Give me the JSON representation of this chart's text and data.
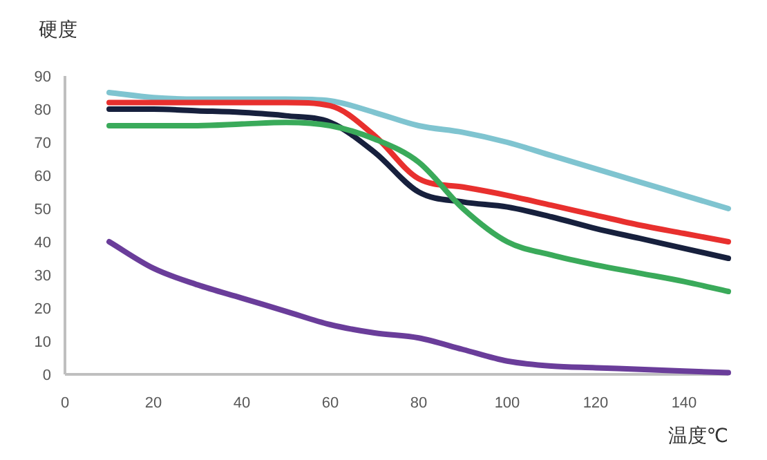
{
  "chart_data": {
    "type": "line",
    "xlabel": "温度℃",
    "ylabel": "硬度",
    "x": [
      10,
      20,
      30,
      40,
      50,
      60,
      70,
      80,
      90,
      100,
      110,
      120,
      130,
      140,
      150
    ],
    "xlim": [
      0,
      150
    ],
    "ylim": [
      0,
      90
    ],
    "xticks": [
      0,
      20,
      40,
      60,
      80,
      100,
      120,
      140
    ],
    "yticks": [
      0,
      10,
      20,
      30,
      40,
      50,
      60,
      70,
      80,
      90
    ],
    "grid": false,
    "series": [
      {
        "color": "#7fc4d0",
        "values": [
          85,
          83.5,
          83,
          83,
          83,
          82.5,
          79,
          75,
          73,
          70,
          66,
          62,
          58,
          54,
          50
        ]
      },
      {
        "color": "#e8302e",
        "values": [
          82,
          82,
          82,
          82,
          82,
          81,
          72,
          59,
          56.5,
          54,
          51,
          48,
          45,
          42.5,
          40
        ]
      },
      {
        "color": "#17203d",
        "values": [
          80,
          80,
          79.5,
          79,
          78,
          76,
          67,
          55,
          52,
          50.5,
          47.5,
          44,
          41,
          38,
          35
        ]
      },
      {
        "color": "#3aaa5a",
        "values": [
          75,
          75,
          75,
          75.5,
          76,
          75,
          71,
          64,
          50,
          40,
          36,
          33,
          30.5,
          28,
          25
        ]
      },
      {
        "color": "#6a3d9a",
        "values": [
          40,
          32,
          27,
          23,
          19,
          15,
          12.5,
          11,
          7.5,
          4,
          2.5,
          2,
          1.5,
          1,
          0.5
        ]
      }
    ]
  }
}
